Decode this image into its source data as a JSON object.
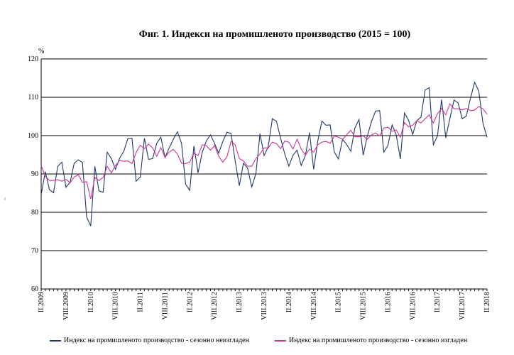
{
  "chart_data": {
    "type": "line",
    "title": "Фиг. 1. Индекси на промишленото производство (2015 = 100)",
    "ylabel": "%",
    "xlabel": "",
    "ylim": [
      60,
      120
    ],
    "yticks": [
      60,
      70,
      80,
      90,
      100,
      110,
      120
    ],
    "grid": true,
    "legend": "bottom",
    "period": {
      "start": "II.2009",
      "end": "II.2018",
      "frequency": "monthly"
    },
    "xtick_labels": [
      "II.2009",
      "VIII.2009",
      "II.2010",
      "VIII.2010",
      "II.2011",
      "VIII.2011",
      "II.2012",
      "VIII.2012",
      "II.2013",
      "VIII.2013",
      "II.2014",
      "VIII.2014",
      "II.2015",
      "VIII.2015",
      "II.2016",
      "VIII.2016",
      "II.2017",
      "VIII.2017",
      "II.2018"
    ],
    "series": [
      {
        "name": "Индекс на промишленото производство - сезонно  неизгладен",
        "color": "#1f3864",
        "values": [
          84.6,
          90.6,
          85.9,
          85.1,
          92,
          93.1,
          86.5,
          87.8,
          92.8,
          93.7,
          93,
          78.8,
          76.4,
          92,
          85.6,
          85.2,
          95.7,
          94,
          91.2,
          94.1,
          95.9,
          99.2,
          99.3,
          88.1,
          89.2,
          99.3,
          93.8,
          94,
          98,
          99.6,
          94.3,
          96.8,
          99,
          101,
          98,
          87.3,
          85.7,
          97.3,
          90.3,
          95.6,
          98.6,
          100.2,
          98,
          95.4,
          98.5,
          100.9,
          100.5,
          93.4,
          86.9,
          92.8,
          91.5,
          86.6,
          90,
          100.5,
          94.8,
          97.1,
          104.4,
          103.7,
          99.3,
          95.2,
          92,
          94.9,
          96.2,
          92.2,
          94.8,
          100.8,
          91.2,
          98.6,
          103.8,
          102.7,
          102.8,
          95.7,
          93.9,
          99,
          97.7,
          95.9,
          102,
          104.2,
          94.9,
          99.9,
          103.6,
          106.4,
          106.5,
          95.7,
          97.4,
          102.8,
          100.2,
          93.9,
          105.9,
          104,
          100.3,
          103.9,
          104.8,
          111.9,
          112.5,
          97.6,
          99.9,
          109.4,
          99.4,
          104.5,
          109.3,
          108.5,
          104.4,
          105.1,
          109.8,
          113.9,
          111.6,
          103.3,
          99.6
        ]
      },
      {
        "name": "Индекс на промишленото производство - сезонно изгладен",
        "color": "#cc3399",
        "values": [
          92.2,
          89.4,
          88.3,
          88.3,
          88.5,
          88.1,
          88.6,
          87.7,
          89.2,
          89.8,
          87.8,
          88,
          83.5,
          89.1,
          88.3,
          89.1,
          92,
          90.3,
          92.2,
          93.5,
          93.3,
          93.4,
          92.7,
          95.6,
          97.5,
          96.6,
          97.8,
          96.8,
          94.6,
          96.9,
          94.3,
          95.7,
          96.4,
          95.2,
          92.8,
          92.7,
          93.1,
          95.4,
          94.8,
          97.6,
          97.4,
          96.2,
          97.4,
          94.6,
          93.1,
          94.5,
          98.5,
          97.6,
          94,
          93.4,
          92,
          92,
          94,
          95.2,
          96.8,
          96.8,
          98.3,
          97.9,
          96.6,
          98.6,
          98.3,
          96.5,
          99.1,
          96.5,
          94.9,
          96.5,
          95.7,
          97.6,
          98.3,
          98.5,
          98,
          99.9,
          99.6,
          99,
          100.2,
          101.4,
          99.7,
          99.7,
          99.9,
          99,
          100.2,
          100.7,
          99.9,
          102,
          102.2,
          101.1,
          101.5,
          99.6,
          103.4,
          102.3,
          102.7,
          103.9,
          103.3,
          104.4,
          105.4,
          103.3,
          105.7,
          107.1,
          105.4,
          108.3,
          107,
          107,
          106.7,
          107.1,
          106.5,
          106.7,
          107.6,
          107,
          105.6
        ]
      }
    ]
  },
  "nav": {
    "arrow": "‹"
  }
}
